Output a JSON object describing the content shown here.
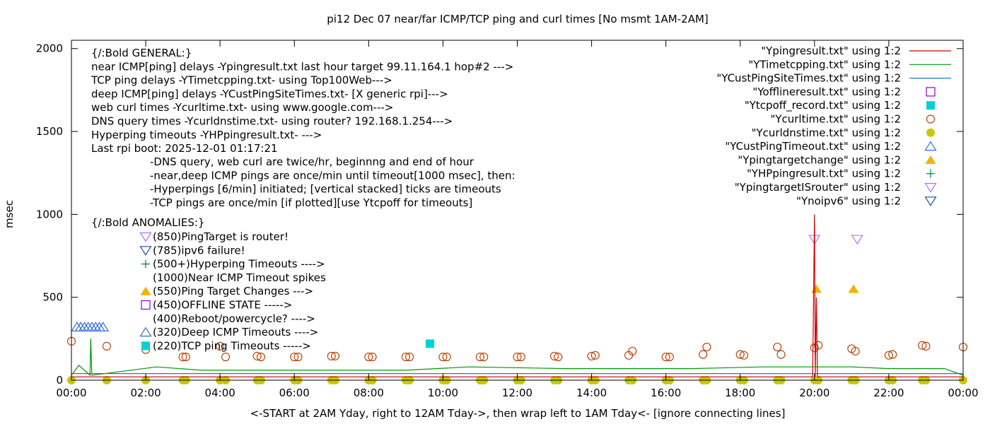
{
  "chart_data": {
    "type": "line",
    "title": "pi12 Dec 07  near/far ICMP/TCP ping and curl times [No msmt 1AM-2AM]",
    "xlabel": "<-START at 2AM Yday, right to 12AM Tday->, then wrap left to 1AM Tday<- [ignore connecting lines]",
    "ylabel": "msec",
    "xlim": [
      0,
      24
    ],
    "ylim": [
      0,
      2050
    ],
    "x_ticks": [
      0,
      2,
      4,
      6,
      8,
      10,
      12,
      14,
      16,
      18,
      20,
      22,
      24
    ],
    "x_tick_labels": [
      "00:00",
      "02:00",
      "04:00",
      "06:00",
      "08:00",
      "10:00",
      "12:00",
      "14:00",
      "16:00",
      "18:00",
      "20:00",
      "22:00",
      "00:00"
    ],
    "y_ticks": [
      0,
      500,
      1000,
      1500,
      2000
    ],
    "y_tick_labels": [
      "0",
      "500",
      "1000",
      "1500",
      "2000"
    ],
    "grid": false,
    "legend_position": "top-right",
    "legend": [
      {
        "label": "\"Ypingresult.txt\" using 1:2",
        "marker": "line",
        "color": "#cc0000"
      },
      {
        "label": "\"YTimetcpping.txt\" using 1:2",
        "marker": "line",
        "color": "#009900"
      },
      {
        "label": "\"YCustPingSiteTimes.txt\" using 1:2",
        "marker": "line",
        "color": "#1f77d0"
      },
      {
        "label": "\"Yofflineresult.txt\" using 1:2",
        "marker": "open-square",
        "color": "#9400d3"
      },
      {
        "label": "\"Ytcpoff_record.txt\" using 1:2",
        "marker": "filled-square",
        "color": "#00d2d2"
      },
      {
        "label": "\"Ycurltime.txt\" using 1:2",
        "marker": "open-circle",
        "color": "#b8450a"
      },
      {
        "label": "\"Ycurldnstime.txt\" using 1:2",
        "marker": "filled-circle",
        "color": "#c8c800"
      },
      {
        "label": "\"YCustPingTimeout.txt\" using 1:2",
        "marker": "open-triangle-up",
        "color": "#2e6fd8"
      },
      {
        "label": "\"Ypingtargetchange\" using 1:2",
        "marker": "filled-triangle-up",
        "color": "#f5b200"
      },
      {
        "label": "\"YHPpingresult.txt\" using 1:2",
        "marker": "plus",
        "color": "#007a4a"
      },
      {
        "label": "\"YpingtargetISrouter\" using 1:2",
        "marker": "open-triangle-down",
        "color": "#b070ff"
      },
      {
        "label": "\"Ynoipv6\" using 1:2",
        "marker": "open-triangle-down",
        "color": "#1a4f9a"
      }
    ],
    "annotations": {
      "general": [
        "{/:Bold GENERAL:}",
        "near ICMP[ping] delays -Ypingresult.txt last hour target 99.11.164.1 hop#2 --->",
        "TCP ping delays -YTimetcpping.txt- using Top100Web--->",
        "deep ICMP[ping] delays -YCustPingSiteTimes.txt- [X generic rpi]--->",
        "web curl times -Ycurltime.txt- using www.google.com--->",
        "DNS query times -Ycurldnstime.txt- using router? 192.168.1.254--->",
        "Hyperping timeouts -YHPpingresult.txt- --->",
        "Last rpi boot: 2025-12-01 01:17:21"
      ],
      "notes": [
        "-DNS query, web curl are twice/hr, beginnng and end of hour",
        "-near,deep ICMP pings are once/min until timeout[1000 msec], then:",
        "  -Hyperpings [6/min] initiated; [vertical stacked] ticks are timeouts",
        "-TCP pings are once/min [if plotted][use Ytcpoff for timeouts]"
      ],
      "anomalies_title": "{/:Bold ANOMALIES:}",
      "anomalies": [
        {
          "marker": "open-triangle-down",
          "color": "#b070ff",
          "text": "(850)PingTarget is router!"
        },
        {
          "marker": "open-triangle-down",
          "color": "#1a4f9a",
          "text": "(785)ipv6 failure!"
        },
        {
          "marker": "plus",
          "color": "#007a4a",
          "text": "(500+)Hyperping Timeouts ---->"
        },
        {
          "marker": "none",
          "color": "#000000",
          "text": "(1000)Near ICMP Timeout spikes"
        },
        {
          "marker": "filled-triangle-up",
          "color": "#f5b200",
          "text": "(550)Ping Target Changes --->"
        },
        {
          "marker": "open-square",
          "color": "#9400d3",
          "text": "(450)OFFLINE STATE ----->"
        },
        {
          "marker": "none",
          "color": "#000000",
          "text": "(400)Reboot/powercycle? ---->"
        },
        {
          "marker": "open-triangle-up",
          "color": "#2e6fd8",
          "text": "(320)Deep ICMP Timeouts ---->"
        },
        {
          "marker": "filled-square",
          "color": "#00d2d2",
          "text": "(220)TCP ping Timeouts ----->"
        }
      ]
    },
    "series": [
      {
        "name": "\"Ycurltime.txt\" using 1:2",
        "marker": "open-circle",
        "color": "#b8450a",
        "x": [
          0.0,
          0.95,
          2.0,
          3.0,
          3.08,
          4.0,
          4.15,
          5.0,
          5.1,
          6.0,
          6.1,
          7.0,
          7.1,
          8.0,
          8.1,
          9.0,
          9.1,
          10.0,
          10.1,
          11.0,
          11.1,
          12.0,
          12.1,
          13.0,
          13.1,
          14.0,
          14.1,
          15.0,
          15.1,
          16.0,
          16.1,
          17.0,
          17.1,
          18.0,
          18.1,
          19.0,
          19.1,
          20.0,
          20.1,
          21.0,
          21.1,
          22.0,
          22.1,
          22.9,
          23.0,
          24.0
        ],
        "y": [
          235,
          205,
          185,
          140,
          140,
          205,
          140,
          145,
          140,
          140,
          140,
          145,
          145,
          140,
          140,
          140,
          140,
          140,
          140,
          140,
          140,
          140,
          140,
          145,
          140,
          145,
          150,
          150,
          175,
          140,
          140,
          155,
          200,
          155,
          150,
          200,
          155,
          195,
          210,
          190,
          175,
          150,
          155,
          210,
          205,
          200
        ]
      },
      {
        "name": "\"Ycurldnstime.txt\" using 1:2",
        "marker": "filled-circle",
        "color": "#c8c800",
        "x": [
          0.0,
          0.95,
          2.0,
          3.0,
          3.08,
          4.0,
          4.15,
          5.0,
          5.1,
          6.0,
          6.1,
          7.0,
          7.1,
          8.0,
          8.1,
          9.0,
          9.1,
          10.0,
          10.1,
          11.0,
          11.1,
          12.0,
          12.1,
          13.0,
          13.1,
          14.0,
          14.1,
          15.0,
          15.1,
          16.0,
          16.1,
          17.0,
          17.1,
          18.0,
          18.1,
          19.0,
          19.1,
          20.0,
          20.1,
          21.0,
          21.1,
          22.0,
          22.1,
          22.9,
          23.0,
          24.0
        ],
        "y": [
          0,
          0,
          0,
          0,
          0,
          0,
          0,
          0,
          0,
          0,
          0,
          0,
          0,
          0,
          0,
          0,
          0,
          0,
          0,
          0,
          0,
          0,
          0,
          0,
          0,
          0,
          0,
          0,
          0,
          0,
          0,
          0,
          0,
          0,
          0,
          0,
          0,
          0,
          0,
          0,
          0,
          0,
          0,
          0,
          0,
          0
        ]
      },
      {
        "name": "\"YCustPingTimeout.txt\" using 1:2",
        "marker": "open-triangle-up",
        "color": "#2e6fd8",
        "x": [
          0.15,
          0.25,
          0.35,
          0.45,
          0.55,
          0.65,
          0.75,
          0.85
        ],
        "y": [
          320,
          320,
          320,
          320,
          320,
          320,
          320,
          320
        ]
      },
      {
        "name": "\"Ytcpoff_record.txt\" using 1:2",
        "marker": "filled-square",
        "color": "#00d2d2",
        "x": [
          9.65
        ],
        "y": [
          220
        ]
      },
      {
        "name": "\"Ypingtargetchange\" using 1:2",
        "marker": "filled-triangle-up",
        "color": "#f5b200",
        "x": [
          20.05,
          21.05
        ],
        "y": [
          550,
          550
        ]
      },
      {
        "name": "\"YpingtargetISrouter\" using 1:2",
        "marker": "open-triangle-down",
        "color": "#b070ff",
        "x": [
          20.0,
          21.15
        ],
        "y": [
          850,
          850
        ]
      },
      {
        "name": "\"Ypingresult.txt\" using 1:2",
        "marker": "line",
        "color": "#cc0000",
        "x": [
          0,
          19.95,
          20.0,
          20.02,
          20.05,
          20.08,
          24
        ],
        "y": [
          20,
          20,
          1000,
          20,
          500,
          20,
          20
        ]
      },
      {
        "name": "\"YTimetcpping.txt\" using 1:2",
        "marker": "line",
        "color": "#009900",
        "x": [
          0,
          0.2,
          0.5,
          0.52,
          0.55,
          2.3,
          3.5,
          5.0,
          7.0,
          9.0,
          10.7,
          13.3,
          15.0,
          16.7,
          18.6,
          20.0,
          21.0,
          22.0,
          23.5,
          24
        ],
        "y": [
          30,
          90,
          30,
          250,
          30,
          80,
          60,
          60,
          60,
          60,
          80,
          70,
          70,
          70,
          80,
          80,
          80,
          70,
          70,
          30
        ]
      },
      {
        "name": "\"YCustPingSiteTimes.txt\" using 1:2",
        "marker": "line",
        "color": "#1f77d0",
        "x": [
          0,
          24
        ],
        "y": [
          40,
          40
        ]
      }
    ]
  }
}
